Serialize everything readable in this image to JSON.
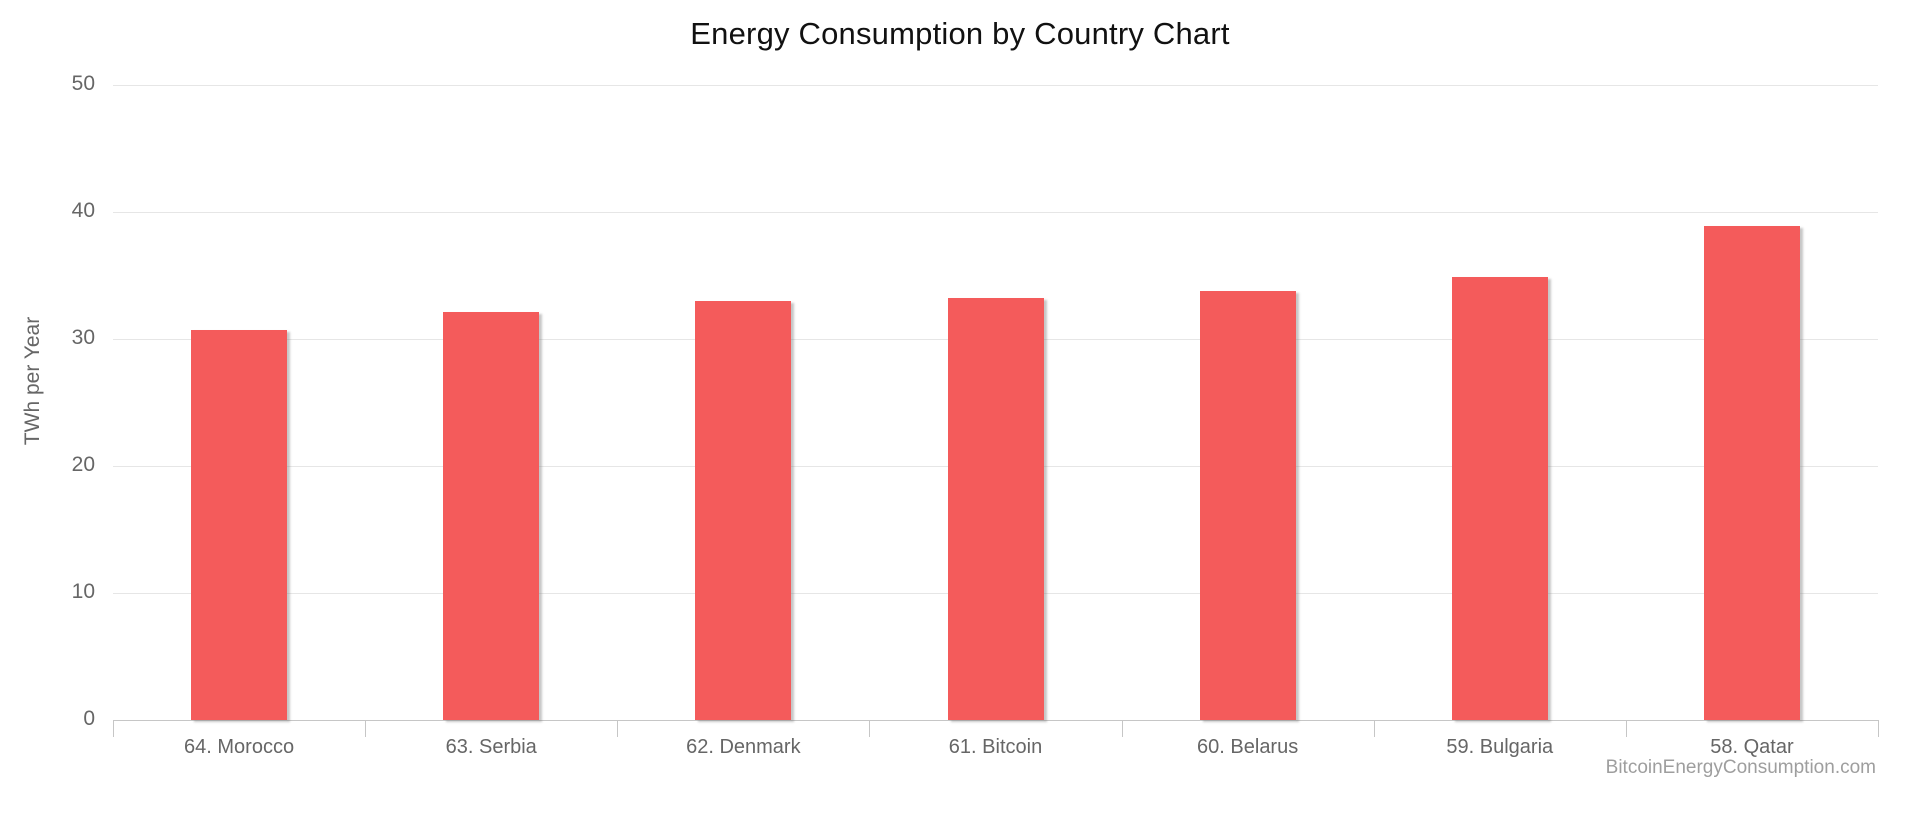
{
  "chart_data": {
    "type": "bar",
    "title": "Energy Consumption by Country Chart",
    "ylabel": "TWh per Year",
    "xlabel": "",
    "categories": [
      "64. Morocco",
      "63. Serbia",
      "62. Denmark",
      "61. Bitcoin",
      "60. Belarus",
      "59. Bulgaria",
      "58. Qatar"
    ],
    "values": [
      30.7,
      32.1,
      33.0,
      33.2,
      33.8,
      34.9,
      38.9
    ],
    "ylim": [
      0,
      50
    ],
    "yticks": [
      0,
      10,
      20,
      30,
      40,
      50
    ],
    "grid": "horizontal-only",
    "legend_position": "none",
    "bar_color": "#f45b5b"
  },
  "watermark": "BitcoinEnergyConsumption.com",
  "colors": {
    "bar": "#f45b5b",
    "gridline": "#e6e6e6",
    "axis": "#c6c6c6",
    "axis_label": "#666666",
    "title": "#111111",
    "watermark": "#9e9e9e",
    "background": "#ffffff"
  }
}
